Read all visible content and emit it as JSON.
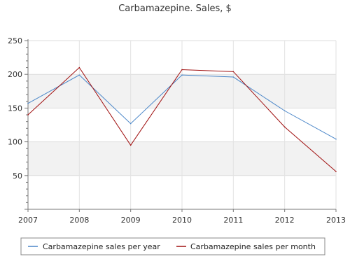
{
  "chart_data": {
    "type": "line",
    "title": "Carbamazepine. Sales, $",
    "x": [
      "2007",
      "2008",
      "2009",
      "2010",
      "2011",
      "2012",
      "2013"
    ],
    "ylim": [
      0,
      250
    ],
    "yticks": [
      "250",
      "200",
      "150",
      "100",
      "50"
    ],
    "grid": true,
    "legend_position": "bottom",
    "series": [
      {
        "name": "Carbamazepine sales per year",
        "color": "#4a86c8",
        "values": [
          157,
          199,
          127,
          199,
          196,
          146,
          104
        ]
      },
      {
        "name": "Carbamazepine sales per month",
        "color": "#a01010",
        "values": [
          140,
          210,
          95,
          207,
          204,
          122,
          56
        ]
      }
    ]
  }
}
